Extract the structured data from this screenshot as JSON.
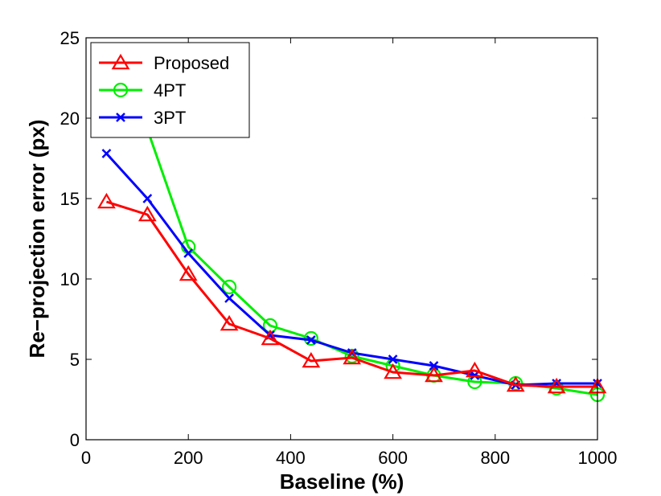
{
  "chart_data": {
    "type": "line",
    "xlabel": "Baseline (%)",
    "ylabel": "Re−projection error (px)",
    "xlim": [
      0,
      1000
    ],
    "ylim": [
      0,
      25
    ],
    "x_ticks": [
      "0",
      "200",
      "400",
      "600",
      "800",
      "1000"
    ],
    "y_ticks": [
      "0",
      "5",
      "10",
      "15",
      "20",
      "25"
    ],
    "grid": false,
    "legend_position": "top-left",
    "x": [
      40,
      120,
      200,
      280,
      360,
      440,
      520,
      600,
      680,
      760,
      840,
      920,
      1000
    ],
    "series": [
      {
        "name": "Proposed",
        "color": "#ff0000",
        "marker": "triangle",
        "values": [
          14.8,
          14.0,
          10.3,
          7.2,
          6.3,
          4.9,
          5.1,
          4.2,
          4.0,
          4.3,
          3.4,
          3.3,
          3.3
        ]
      },
      {
        "name": "4PT",
        "color": "#00ee00",
        "marker": "circle",
        "values": [
          24.2,
          19.3,
          12.0,
          9.5,
          7.1,
          6.3,
          5.2,
          4.6,
          4.0,
          3.6,
          3.5,
          3.2,
          2.8
        ]
      },
      {
        "name": "3PT",
        "color": "#0000ff",
        "marker": "x",
        "values": [
          17.8,
          15.0,
          11.6,
          8.8,
          6.5,
          6.2,
          5.4,
          5.0,
          4.6,
          4.0,
          3.4,
          3.5,
          3.5
        ]
      }
    ]
  }
}
